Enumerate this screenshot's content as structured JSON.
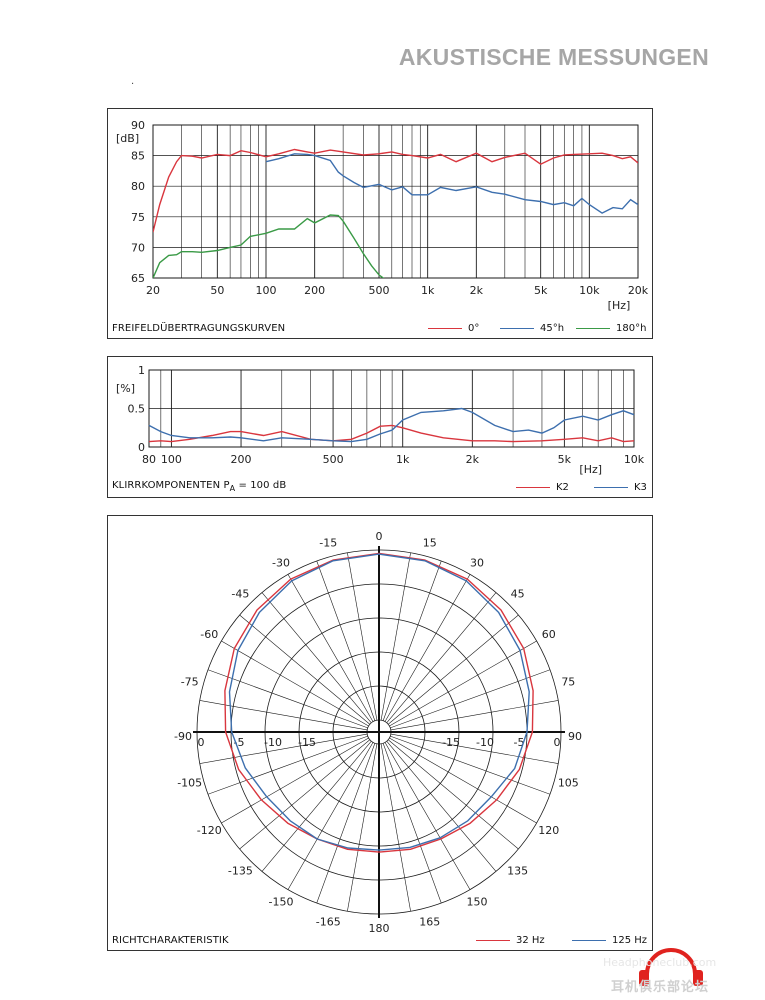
{
  "page": {
    "title": "AKUSTISCHE MESSUNGEN",
    "dot": "."
  },
  "chart_data": [
    {
      "type": "line",
      "title": "FREIFELDÜBERTRAGUNGSKURVEN",
      "xscale": "log",
      "xlim": [
        20,
        20000
      ],
      "ylim": [
        65,
        90
      ],
      "ylabel": "[dB]",
      "xlabel": "[Hz]",
      "xtick_labels": [
        {
          "v": 20,
          "t": "20"
        },
        {
          "v": 50,
          "t": "50"
        },
        {
          "v": 100,
          "t": "100"
        },
        {
          "v": 200,
          "t": "200"
        },
        {
          "v": 500,
          "t": "500"
        },
        {
          "v": 1000,
          "t": "1k"
        },
        {
          "v": 2000,
          "t": "2k"
        },
        {
          "v": 5000,
          "t": "5k"
        },
        {
          "v": 10000,
          "t": "10k"
        },
        {
          "v": 20000,
          "t": "20k"
        }
      ],
      "yticks": [
        65,
        70,
        75,
        80,
        85,
        90
      ],
      "grid": true,
      "legend_position": "bottom-right",
      "series": [
        {
          "name": "0°",
          "color": "#d9363e",
          "x": [
            20,
            22,
            25,
            28,
            30,
            35,
            40,
            50,
            60,
            70,
            80,
            100,
            120,
            150,
            180,
            200,
            250,
            300,
            400,
            500,
            600,
            700,
            800,
            1000,
            1200,
            1500,
            2000,
            2500,
            3000,
            4000,
            5000,
            6000,
            7000,
            8000,
            10000,
            12000,
            14000,
            16000,
            18000,
            20000
          ],
          "y": [
            72.5,
            77,
            81.5,
            84,
            85,
            84.9,
            84.6,
            85.2,
            85,
            85.8,
            85.5,
            84.8,
            85.3,
            86,
            85.6,
            85.4,
            85.9,
            85.6,
            85.1,
            85.3,
            85.6,
            85.2,
            85,
            84.6,
            85.2,
            84,
            85.4,
            84,
            84.7,
            85.4,
            83.6,
            84.6,
            85.1,
            85.2,
            85.3,
            85.4,
            85,
            84.5,
            84.8,
            83.8
          ]
        },
        {
          "name": "45°h",
          "color": "#3d6fae",
          "x": [
            100,
            120,
            150,
            180,
            200,
            250,
            280,
            300,
            350,
            400,
            500,
            600,
            700,
            800,
            1000,
            1200,
            1500,
            2000,
            2500,
            3000,
            4000,
            5000,
            6000,
            7000,
            8000,
            9000,
            10000,
            12000,
            14000,
            16000,
            18000,
            20000
          ],
          "y": [
            84,
            84.5,
            85.3,
            85.2,
            85,
            84.2,
            82.3,
            81.7,
            80.6,
            79.8,
            80.3,
            79.4,
            79.9,
            78.6,
            78.6,
            79.8,
            79.3,
            79.9,
            79,
            78.7,
            77.8,
            77.5,
            77,
            77.3,
            76.8,
            78,
            77,
            75.6,
            76.5,
            76.3,
            77.8,
            77
          ]
        },
        {
          "name": "180°h",
          "color": "#3a9a46",
          "x": [
            20,
            22,
            25,
            28,
            30,
            35,
            40,
            50,
            60,
            70,
            80,
            100,
            120,
            150,
            180,
            200,
            250,
            280,
            300,
            350,
            400,
            450,
            500,
            550
          ],
          "y": [
            65,
            67.5,
            68.7,
            68.8,
            69.3,
            69.3,
            69.2,
            69.5,
            70,
            70.4,
            71.8,
            72.3,
            73,
            73,
            74.7,
            74,
            75.3,
            75.2,
            74.3,
            71.5,
            69,
            67,
            65.5,
            64.7
          ]
        }
      ]
    },
    {
      "type": "line",
      "title": "KLIRRKOMPONENTEN P",
      "title_sub": "A",
      "title_tail": " = 100 dB",
      "xscale": "log",
      "xlim": [
        80,
        10000
      ],
      "ylim": [
        0,
        1
      ],
      "ylabel": "[%]",
      "xlabel": "[Hz]",
      "xtick_labels": [
        {
          "v": 80,
          "t": "80"
        },
        {
          "v": 100,
          "t": "100"
        },
        {
          "v": 200,
          "t": "200"
        },
        {
          "v": 500,
          "t": "500"
        },
        {
          "v": 1000,
          "t": "1k"
        },
        {
          "v": 2000,
          "t": "2k"
        },
        {
          "v": 5000,
          "t": "5k"
        },
        {
          "v": 10000,
          "t": "10k"
        }
      ],
      "yticks": [
        0,
        0.5,
        1
      ],
      "ytick_labels": [
        "0",
        "0.5",
        "1"
      ],
      "grid": true,
      "legend_position": "bottom-right",
      "series": [
        {
          "name": "K2",
          "color": "#d9363e",
          "x": [
            80,
            90,
            100,
            120,
            150,
            180,
            200,
            250,
            300,
            400,
            500,
            600,
            700,
            800,
            900,
            1000,
            1200,
            1500,
            2000,
            2500,
            3000,
            4000,
            5000,
            6000,
            7000,
            8000,
            9000,
            10000
          ],
          "y": [
            0.07,
            0.08,
            0.07,
            0.1,
            0.15,
            0.2,
            0.2,
            0.15,
            0.2,
            0.1,
            0.08,
            0.1,
            0.18,
            0.27,
            0.28,
            0.25,
            0.18,
            0.12,
            0.08,
            0.08,
            0.07,
            0.08,
            0.1,
            0.12,
            0.08,
            0.12,
            0.07,
            0.08
          ]
        },
        {
          "name": "K3",
          "color": "#3d6fae",
          "x": [
            80,
            90,
            100,
            120,
            150,
            180,
            200,
            250,
            300,
            400,
            500,
            600,
            700,
            800,
            900,
            1000,
            1200,
            1500,
            1800,
            2000,
            2500,
            3000,
            3500,
            4000,
            4500,
            5000,
            6000,
            7000,
            8000,
            9000,
            10000
          ],
          "y": [
            0.28,
            0.2,
            0.15,
            0.12,
            0.12,
            0.13,
            0.12,
            0.08,
            0.12,
            0.1,
            0.08,
            0.07,
            0.1,
            0.17,
            0.22,
            0.35,
            0.45,
            0.47,
            0.5,
            0.45,
            0.28,
            0.2,
            0.22,
            0.18,
            0.25,
            0.35,
            0.4,
            0.35,
            0.42,
            0.47,
            0.42
          ]
        }
      ]
    },
    {
      "type": "polar",
      "title": "RICHTCHARAKTERISTIK",
      "angle_labels": [
        {
          "a": 0,
          "t": "0"
        },
        {
          "a": 15,
          "t": "15"
        },
        {
          "a": 30,
          "t": "30"
        },
        {
          "a": 45,
          "t": "45"
        },
        {
          "a": 60,
          "t": "60"
        },
        {
          "a": 75,
          "t": "75"
        },
        {
          "a": 90,
          "t": "90"
        },
        {
          "a": 105,
          "t": "105"
        },
        {
          "a": 120,
          "t": "120"
        },
        {
          "a": 135,
          "t": "135"
        },
        {
          "a": 150,
          "t": "150"
        },
        {
          "a": 165,
          "t": "165"
        },
        {
          "a": 180,
          "t": "180"
        },
        {
          "a": -165,
          "t": "-165"
        },
        {
          "a": -150,
          "t": "-150"
        },
        {
          "a": -135,
          "t": "-135"
        },
        {
          "a": -120,
          "t": "-120"
        },
        {
          "a": -105,
          "t": "-105"
        },
        {
          "a": -90,
          "t": "-90"
        },
        {
          "a": -75,
          "t": "-75"
        },
        {
          "a": -60,
          "t": "-60"
        },
        {
          "a": -45,
          "t": "-45"
        },
        {
          "a": -30,
          "t": "-30"
        },
        {
          "a": -15,
          "t": "-15"
        }
      ],
      "radial_range": [
        -25,
        0
      ],
      "radial_rings": [
        0,
        -5,
        -10,
        -15,
        -20
      ],
      "radial_labels": [
        "0",
        "-5",
        "-10",
        "-15"
      ],
      "legend_position": "bottom-right",
      "series": [
        {
          "name": "32 Hz",
          "color": "#d9363e",
          "angles": [
            0,
            15,
            30,
            45,
            60,
            75,
            90,
            105,
            120,
            135,
            150,
            165,
            180,
            -165,
            -150,
            -135,
            -120,
            -105,
            -90,
            -75,
            -60,
            -45,
            -30,
            -15
          ],
          "values": [
            -0.5,
            -0.6,
            -0.8,
            -1.4,
            -2.2,
            -3.3,
            -4.2,
            -5.4,
            -6.8,
            -7.8,
            -8.6,
            -8.9,
            -9.1,
            -8.9,
            -8.6,
            -7.8,
            -6.8,
            -5.4,
            -4.2,
            -3.3,
            -2.2,
            -1.4,
            -0.8,
            -0.6
          ]
        },
        {
          "name": "125 Hz",
          "color": "#3d6fae",
          "angles": [
            0,
            15,
            30,
            45,
            60,
            75,
            90,
            105,
            120,
            135,
            150,
            165,
            180,
            -165,
            -150,
            -135,
            -120,
            -105,
            -90,
            -75,
            -60,
            -45,
            -30,
            -15
          ],
          "values": [
            -0.6,
            -0.7,
            -1.1,
            -1.9,
            -2.8,
            -3.9,
            -5,
            -6.1,
            -7.7,
            -8.3,
            -8.8,
            -9.2,
            -9.4,
            -9.1,
            -8.6,
            -8.3,
            -7.7,
            -6.4,
            -5.1,
            -4,
            -2.8,
            -1.9,
            -1.1,
            -0.7
          ]
        }
      ]
    }
  ],
  "watermark": {
    "brand": "Headphoneclub.com",
    "cn": "耳机俱乐部论坛"
  }
}
